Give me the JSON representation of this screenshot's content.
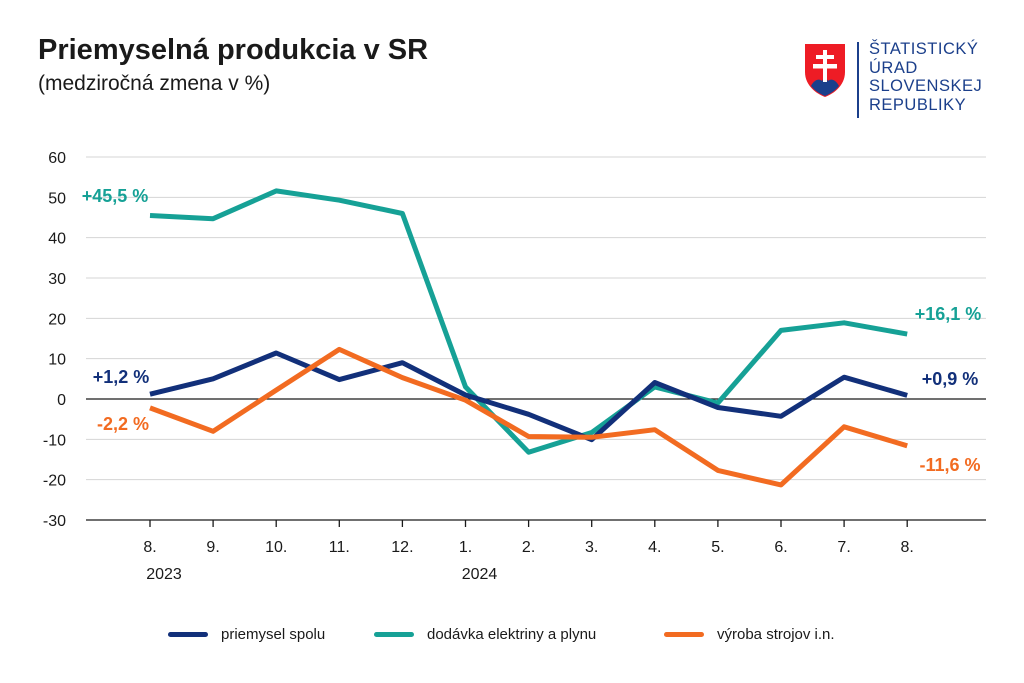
{
  "header": {
    "title": "Priemyselná produkcia v SR",
    "subtitle": "(medziročná zmena v %)"
  },
  "logo": {
    "lines": [
      "ŠTATISTICKÝ",
      "ÚRAD",
      "SLOVENSKEJ",
      "REPUBLIKY"
    ],
    "colors": {
      "red": "#ee1c25",
      "blue": "#1b3f8b",
      "white": "#ffffff"
    }
  },
  "chart_data": {
    "type": "line",
    "title": "Priemyselná produkcia v SR",
    "subtitle": "(medziročná zmena v %)",
    "xlabel": "",
    "ylabel": "",
    "ylim": [
      -30,
      60
    ],
    "yticks": [
      60,
      50,
      40,
      30,
      20,
      10,
      0,
      -10,
      -20,
      -30
    ],
    "grid": true,
    "legend_position": "bottom",
    "categories": [
      "8.",
      "9.",
      "10.",
      "11.",
      "12.",
      "1.",
      "2.",
      "3.",
      "4.",
      "5.",
      "6.",
      "7.",
      "8."
    ],
    "year_labels": [
      {
        "index": 0,
        "label": "2023"
      },
      {
        "index": 5,
        "label": "2024"
      }
    ],
    "series": [
      {
        "name": "dodávka elektriny a plynu",
        "color": "#16a196",
        "values": [
          45.5,
          44.7,
          51.6,
          49.3,
          46.0,
          3.0,
          -13.2,
          -8.3,
          3.0,
          -1.0,
          17.0,
          18.9,
          16.1
        ],
        "start_label": "+45,5 %",
        "end_label": "+16,1 %"
      },
      {
        "name": "priemysel spolu",
        "color": "#12307a",
        "values": [
          1.2,
          5.0,
          11.4,
          4.8,
          9.0,
          1.0,
          -3.8,
          -10.1,
          4.1,
          -2.1,
          -4.3,
          5.4,
          0.9
        ],
        "start_label": "+1,2 %",
        "end_label": "+0,9 %"
      },
      {
        "name": "výroba strojov i.n.",
        "color": "#f26b21",
        "values": [
          -2.2,
          -8.0,
          2.2,
          12.3,
          5.3,
          -0.3,
          -9.3,
          -9.5,
          -7.6,
          -17.7,
          -21.3,
          -6.9,
          -11.6
        ],
        "start_label": "-2,2 %",
        "end_label": "-11,6 %"
      }
    ]
  },
  "legend": [
    {
      "label": "priemysel spolu",
      "color": "#12307a"
    },
    {
      "label": "dodávka elektriny a plynu",
      "color": "#16a196"
    },
    {
      "label": "výroba strojov i.n.",
      "color": "#f26b21"
    }
  ]
}
